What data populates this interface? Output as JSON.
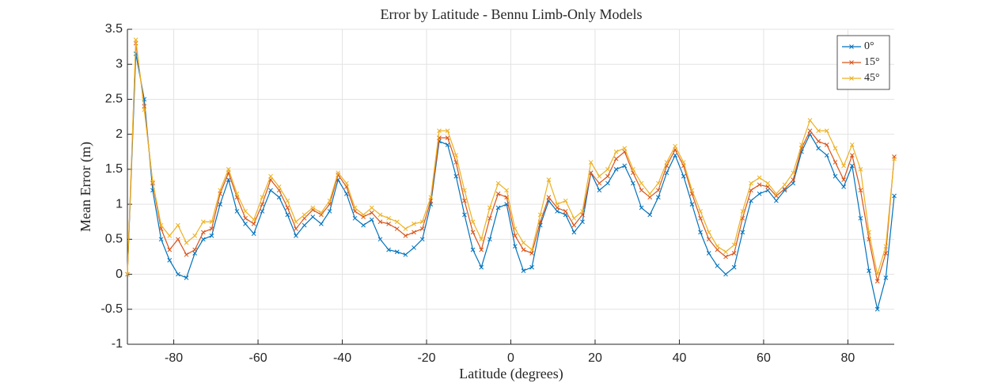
{
  "chart_data": {
    "type": "line",
    "title": "Error by Latitude - Bennu Limb-Only Models",
    "xlabel": "Latitude (degrees)",
    "ylabel": "Mean Error (m)",
    "x": [
      -91,
      -89,
      -87,
      -85,
      -83,
      -81,
      -79,
      -77,
      -75,
      -73,
      -71,
      -69,
      -67,
      -65,
      -63,
      -61,
      -59,
      -57,
      -55,
      -53,
      -51,
      -49,
      -47,
      -45,
      -43,
      -41,
      -39,
      -37,
      -35,
      -33,
      -31,
      -29,
      -27,
      -25,
      -23,
      -21,
      -19,
      -17,
      -15,
      -13,
      -11,
      -9,
      -7,
      -5,
      -3,
      -1,
      1,
      3,
      5,
      7,
      9,
      11,
      13,
      15,
      17,
      19,
      21,
      23,
      25,
      27,
      29,
      31,
      33,
      35,
      37,
      39,
      41,
      43,
      45,
      47,
      49,
      51,
      53,
      55,
      57,
      59,
      61,
      63,
      65,
      67,
      69,
      71,
      73,
      75,
      77,
      79,
      81,
      83,
      85,
      87,
      89,
      91
    ],
    "series": [
      {
        "name": "0°",
        "color": "#0072bd",
        "values": [
          0,
          3.15,
          2.5,
          1.2,
          0.5,
          0.2,
          0.0,
          -0.05,
          0.3,
          0.5,
          0.55,
          1.0,
          1.35,
          0.9,
          0.72,
          0.58,
          0.9,
          1.2,
          1.1,
          0.85,
          0.55,
          0.7,
          0.82,
          0.72,
          0.9,
          1.35,
          1.15,
          0.8,
          0.7,
          0.78,
          0.5,
          0.35,
          0.32,
          0.28,
          0.38,
          0.5,
          1.0,
          1.9,
          1.85,
          1.4,
          0.85,
          0.35,
          0.1,
          0.5,
          0.95,
          1.0,
          0.4,
          0.05,
          0.1,
          0.7,
          1.05,
          0.9,
          0.85,
          0.6,
          0.75,
          1.45,
          1.2,
          1.3,
          1.5,
          1.55,
          1.3,
          0.95,
          0.85,
          1.1,
          1.45,
          1.7,
          1.4,
          1.0,
          0.6,
          0.3,
          0.12,
          0.0,
          0.1,
          0.6,
          1.05,
          1.15,
          1.2,
          1.05,
          1.2,
          1.3,
          1.75,
          2.0,
          1.8,
          1.7,
          1.4,
          1.25,
          1.55,
          0.8,
          0.05,
          -0.5,
          -0.05,
          1.12
        ]
      },
      {
        "name": "15°",
        "color": "#d95319",
        "values": [
          0,
          3.3,
          2.4,
          1.3,
          0.65,
          0.35,
          0.5,
          0.28,
          0.35,
          0.6,
          0.65,
          1.15,
          1.45,
          1.1,
          0.8,
          0.72,
          1.0,
          1.35,
          1.2,
          0.95,
          0.65,
          0.8,
          0.92,
          0.85,
          1.0,
          1.42,
          1.25,
          0.9,
          0.82,
          0.88,
          0.75,
          0.72,
          0.65,
          0.55,
          0.6,
          0.65,
          1.05,
          1.95,
          1.95,
          1.6,
          1.05,
          0.6,
          0.35,
          0.8,
          1.15,
          1.1,
          0.55,
          0.35,
          0.3,
          0.75,
          1.1,
          0.95,
          0.9,
          0.7,
          0.85,
          1.45,
          1.3,
          1.4,
          1.65,
          1.75,
          1.45,
          1.2,
          1.1,
          1.2,
          1.55,
          1.78,
          1.55,
          1.15,
          0.8,
          0.5,
          0.35,
          0.25,
          0.3,
          0.8,
          1.2,
          1.28,
          1.25,
          1.12,
          1.22,
          1.35,
          1.8,
          2.05,
          1.9,
          1.85,
          1.6,
          1.35,
          1.7,
          1.2,
          0.5,
          -0.1,
          0.3,
          1.68
        ]
      },
      {
        "name": "45°",
        "color": "#edb120",
        "values": [
          0,
          3.35,
          2.35,
          1.32,
          0.7,
          0.55,
          0.7,
          0.45,
          0.55,
          0.75,
          0.75,
          1.2,
          1.5,
          1.15,
          0.9,
          0.78,
          1.1,
          1.4,
          1.25,
          1.05,
          0.75,
          0.85,
          0.95,
          0.88,
          1.05,
          1.45,
          1.3,
          0.95,
          0.85,
          0.95,
          0.85,
          0.8,
          0.75,
          0.65,
          0.72,
          0.75,
          1.1,
          2.05,
          2.05,
          1.7,
          1.2,
          0.75,
          0.5,
          0.95,
          1.3,
          1.2,
          0.65,
          0.45,
          0.35,
          0.85,
          1.35,
          1.0,
          1.05,
          0.8,
          0.9,
          1.6,
          1.4,
          1.5,
          1.75,
          1.8,
          1.5,
          1.3,
          1.15,
          1.3,
          1.6,
          1.83,
          1.6,
          1.2,
          0.9,
          0.6,
          0.4,
          0.32,
          0.42,
          0.9,
          1.3,
          1.38,
          1.3,
          1.15,
          1.28,
          1.45,
          1.85,
          2.2,
          2.05,
          2.05,
          1.8,
          1.55,
          1.85,
          1.5,
          0.6,
          0.0,
          0.4,
          1.65
        ]
      }
    ],
    "xlim": [
      -91,
      91
    ],
    "xticks": [
      -80,
      -60,
      -40,
      -20,
      0,
      20,
      40,
      60,
      80
    ],
    "ylim": [
      -1,
      3.5
    ],
    "yticks": [
      -1,
      -0.5,
      0,
      0.5,
      1,
      1.5,
      2,
      2.5,
      3,
      3.5
    ],
    "grid": true,
    "legend": "top-right",
    "marker": "x"
  }
}
